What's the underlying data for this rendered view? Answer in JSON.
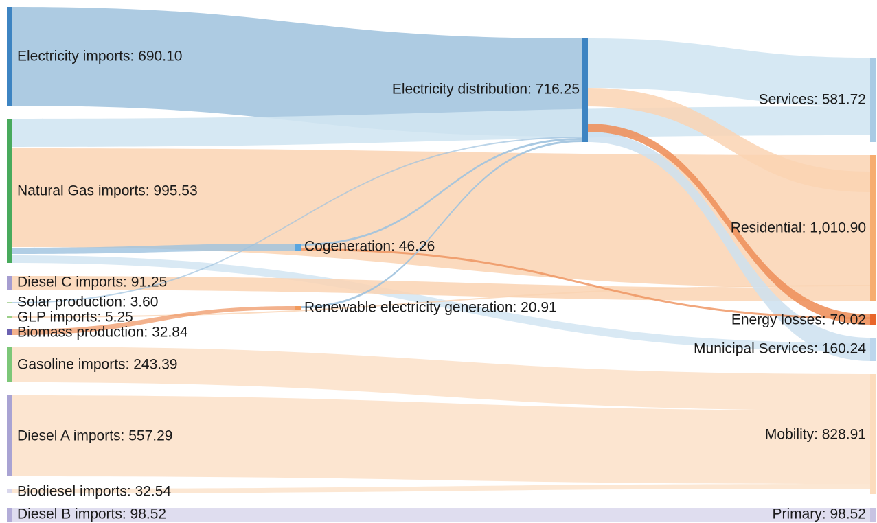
{
  "diagram": {
    "type": "sankey",
    "colors": {
      "electricity_flow": "#a9c8e0",
      "electricity_light": "#d2e5f2",
      "gas_flow": "#fad3b3",
      "oil_flow": "#fbe1c8",
      "loss_flow": "#ee915d",
      "cogen_flow": "#9ec2de"
    },
    "nodes": {
      "elec_imports": {
        "label": "Electricity imports: 690.10",
        "color": "#3d84c2"
      },
      "gas_imports": {
        "label": "Natural Gas imports: 995.53",
        "color": "#48aa5c"
      },
      "dieselc_imports": {
        "label": "Diesel C imports: 91.25",
        "color": "#a69dd0"
      },
      "solar": {
        "label": "Solar production: 3.60",
        "color": "#b4d7a5"
      },
      "glp": {
        "label": "GLP imports: 5.25",
        "color": "#9bcf88"
      },
      "biomass": {
        "label": "Biomass production: 32.84",
        "color": "#6b61b0"
      },
      "gasoline": {
        "label": "Gasoline imports: 243.39",
        "color": "#7cc778"
      },
      "diesela": {
        "label": "Diesel A imports: 557.29",
        "color": "#a9a3d3"
      },
      "biodiesel": {
        "label": "Biodiesel imports: 32.54",
        "color": "#d9d7ec"
      },
      "dieselb": {
        "label": "Diesel B imports: 98.52",
        "color": "#b3add8"
      },
      "elec_dist": {
        "label": "Electricity distribution: 716.25",
        "color": "#3d84c2"
      },
      "cogen": {
        "label": "Cogeneration: 46.26",
        "color": "#5aa6e0"
      },
      "renew": {
        "label": "Renewable electricity generation: 20.91",
        "color": "#f29a5c"
      },
      "services": {
        "label": "Services: 581.72",
        "color": "#a9cbe4"
      },
      "residential": {
        "label": "Residential: 1,010.90",
        "color": "#f6ad70"
      },
      "losses": {
        "label": "Energy losses: 70.02",
        "color": "#e8652a"
      },
      "municipal": {
        "label": "Municipal Services: 160.24",
        "color": "#bcd6ec"
      },
      "mobility": {
        "label": "Mobility: 828.91",
        "color": "#fcdcbd"
      },
      "primary": {
        "label": "Primary: 98.52",
        "color": "#c7c3e2"
      }
    }
  }
}
